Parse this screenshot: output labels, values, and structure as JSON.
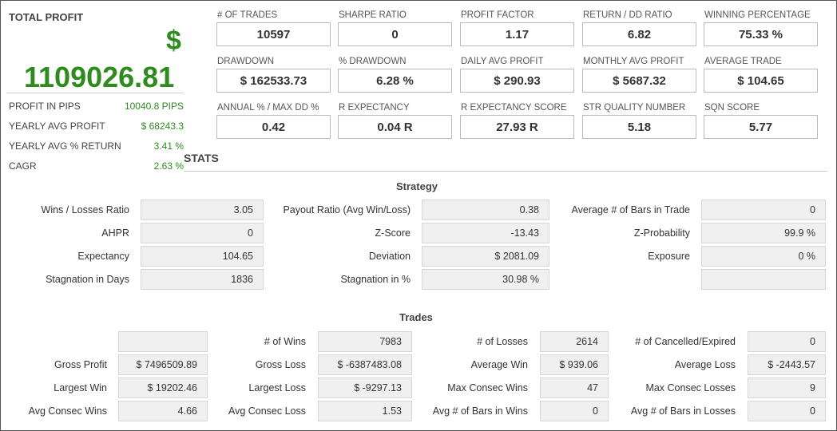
{
  "total_profit": {
    "title": "TOTAL PROFIT",
    "currency_symbol": "$",
    "value": "1109026.81",
    "accent": "#2e8b1e",
    "rows": [
      {
        "label": "PROFIT IN PIPS",
        "value": "10040.8 PIPS"
      },
      {
        "label": "YEARLY AVG PROFIT",
        "value": "$ 68243.3"
      },
      {
        "label": "YEARLY AVG % RETURN",
        "value": "3.41 %"
      },
      {
        "label": "CAGR",
        "value": "2.63 %"
      }
    ]
  },
  "metrics": [
    {
      "label": "# OF TRADES",
      "value": "10597"
    },
    {
      "label": "SHARPE RATIO",
      "value": "0"
    },
    {
      "label": "PROFIT FACTOR",
      "value": "1.17"
    },
    {
      "label": "RETURN / DD RATIO",
      "value": "6.82"
    },
    {
      "label": "WINNING PERCENTAGE",
      "value": "75.33 %"
    },
    {
      "label": "DRAWDOWN",
      "value": "$ 162533.73"
    },
    {
      "label": "% DRAWDOWN",
      "value": "6.28 %"
    },
    {
      "label": "DAILY AVG PROFIT",
      "value": "$ 290.93"
    },
    {
      "label": "MONTHLY AVG PROFIT",
      "value": "$ 5687.32"
    },
    {
      "label": "AVERAGE TRADE",
      "value": "$ 104.65"
    },
    {
      "label": "ANNUAL % / MAX DD %",
      "value": "0.42"
    },
    {
      "label": "R EXPECTANCY",
      "value": "0.04 R"
    },
    {
      "label": "R EXPECTANCY SCORE",
      "value": "27.93 R"
    },
    {
      "label": "STR QUALITY NUMBER",
      "value": "5.18"
    },
    {
      "label": "SQN SCORE",
      "value": "5.77"
    }
  ],
  "stats_title": "STATS",
  "strategy": {
    "title": "Strategy",
    "rows": [
      [
        {
          "label": "Wins / Losses Ratio",
          "value": "3.05"
        },
        {
          "label": "Payout Ratio (Avg Win/Loss)",
          "value": "0.38"
        },
        {
          "label": "Average # of Bars in Trade",
          "value": "0"
        }
      ],
      [
        {
          "label": "AHPR",
          "value": "0"
        },
        {
          "label": "Z-Score",
          "value": "-13.43"
        },
        {
          "label": "Z-Probability",
          "value": "99.9 %"
        }
      ],
      [
        {
          "label": "Expectancy",
          "value": "104.65"
        },
        {
          "label": "Deviation",
          "value": "$ 2081.09"
        },
        {
          "label": "Exposure",
          "value": "0 %"
        }
      ],
      [
        {
          "label": "Stagnation in Days",
          "value": "1836"
        },
        {
          "label": "Stagnation in %",
          "value": "30.98 %"
        },
        {
          "label": "",
          "value": ""
        }
      ]
    ]
  },
  "trades": {
    "title": "Trades",
    "rows": [
      [
        {
          "label": "",
          "value": ""
        },
        {
          "label": "# of Wins",
          "value": "7983"
        },
        {
          "label": "# of Losses",
          "value": "2614"
        },
        {
          "label": "# of Cancelled/Expired",
          "value": "0"
        }
      ],
      [
        {
          "label": "Gross Profit",
          "value": "$ 7496509.89"
        },
        {
          "label": "Gross Loss",
          "value": "$ -6387483.08"
        },
        {
          "label": "Average Win",
          "value": "$ 939.06"
        },
        {
          "label": "Average Loss",
          "value": "$ -2443.57"
        }
      ],
      [
        {
          "label": "Largest Win",
          "value": "$ 19202.46"
        },
        {
          "label": "Largest Loss",
          "value": "$ -9297.13"
        },
        {
          "label": "Max Consec Wins",
          "value": "47"
        },
        {
          "label": "Max Consec Losses",
          "value": "9"
        }
      ],
      [
        {
          "label": "Avg Consec Wins",
          "value": "4.66"
        },
        {
          "label": "Avg Consec Loss",
          "value": "1.53"
        },
        {
          "label": "Avg # of Bars in Wins",
          "value": "0"
        },
        {
          "label": "Avg # of Bars in Losses",
          "value": "0"
        }
      ]
    ]
  }
}
